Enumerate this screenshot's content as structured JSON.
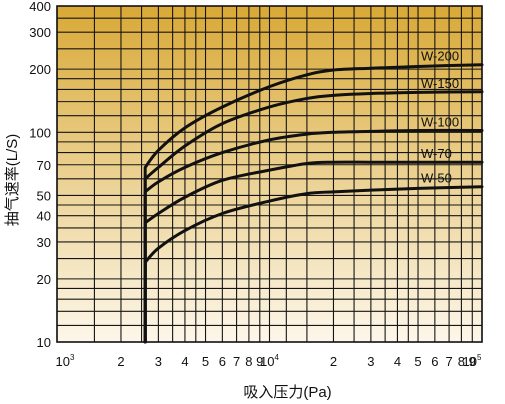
{
  "chart_data": {
    "type": "line",
    "xlabel": "吸入压力(Pa)",
    "ylabel": "抽气速率(L/S)",
    "x_scale": "log",
    "y_scale": "log",
    "xlim": [
      1000,
      100000
    ],
    "ylim": [
      10,
      400
    ],
    "grid": true,
    "background": {
      "top": "#d9a936",
      "bottom": "#fdf7ea"
    },
    "line_color": "#111111",
    "y_ticks": [
      {
        "value": 10,
        "label": "10"
      },
      {
        "value": 20,
        "label": "20"
      },
      {
        "value": 30,
        "label": "30"
      },
      {
        "value": 40,
        "label": "40"
      },
      {
        "value": 50,
        "label": "50"
      },
      {
        "value": 70,
        "label": "70"
      },
      {
        "value": 100,
        "label": "100"
      },
      {
        "value": 200,
        "label": "200"
      },
      {
        "value": 300,
        "label": "300"
      },
      {
        "value": 400,
        "label": "400"
      }
    ],
    "x_ticks": [
      {
        "value": 1000,
        "label": "10",
        "sup": "3"
      },
      {
        "value": 2000,
        "label": "2",
        "sup": ""
      },
      {
        "value": 3000,
        "label": "3",
        "sup": ""
      },
      {
        "value": 4000,
        "label": "4",
        "sup": ""
      },
      {
        "value": 5000,
        "label": "5",
        "sup": ""
      },
      {
        "value": 6000,
        "label": "6",
        "sup": ""
      },
      {
        "value": 7000,
        "label": "7",
        "sup": ""
      },
      {
        "value": 8000,
        "label": "8",
        "sup": ""
      },
      {
        "value": 9000,
        "label": "9",
        "sup": ""
      },
      {
        "value": 10000,
        "label": "10",
        "sup": "4"
      },
      {
        "value": 20000,
        "label": "2",
        "sup": ""
      },
      {
        "value": 30000,
        "label": "3",
        "sup": ""
      },
      {
        "value": 40000,
        "label": "4",
        "sup": ""
      },
      {
        "value": 50000,
        "label": "5",
        "sup": ""
      },
      {
        "value": 60000,
        "label": "6",
        "sup": ""
      },
      {
        "value": 70000,
        "label": "7",
        "sup": ""
      },
      {
        "value": 80000,
        "label": "8",
        "sup": ""
      },
      {
        "value": 90000,
        "label": "9",
        "sup": ""
      },
      {
        "value": 100000,
        "label": "10",
        "sup": "5"
      }
    ],
    "y_grid": [
      10,
      12,
      14,
      16,
      18,
      20,
      25,
      30,
      35,
      40,
      45,
      50,
      60,
      70,
      80,
      90,
      100,
      120,
      140,
      160,
      180,
      200,
      250,
      300,
      350,
      400
    ],
    "x_grid": [
      1000,
      1500,
      2000,
      2500,
      3000,
      3500,
      4000,
      4500,
      5000,
      6000,
      7000,
      8000,
      9000,
      10000,
      12000,
      15000,
      20000,
      25000,
      30000,
      35000,
      40000,
      45000,
      50000,
      60000,
      70000,
      80000,
      90000,
      100000
    ],
    "series": [
      {
        "name": "W-200",
        "points": [
          [
            2600,
            10
          ],
          [
            2600,
            68
          ],
          [
            3000,
            82
          ],
          [
            4000,
            105
          ],
          [
            6000,
            132
          ],
          [
            10000,
            165
          ],
          [
            15000,
            188
          ],
          [
            20000,
            198
          ],
          [
            30000,
            202
          ],
          [
            50000,
            206
          ],
          [
            100000,
            210
          ]
        ]
      },
      {
        "name": "W-150",
        "points": [
          [
            2600,
            10
          ],
          [
            2600,
            60
          ],
          [
            3000,
            68
          ],
          [
            4000,
            86
          ],
          [
            6000,
            110
          ],
          [
            10000,
            132
          ],
          [
            15000,
            145
          ],
          [
            20000,
            150
          ],
          [
            30000,
            153
          ],
          [
            50000,
            155
          ],
          [
            100000,
            156
          ]
        ]
      },
      {
        "name": "W-100",
        "points": [
          [
            2600,
            10
          ],
          [
            2600,
            52
          ],
          [
            3000,
            58
          ],
          [
            4000,
            68
          ],
          [
            6000,
            80
          ],
          [
            10000,
            92
          ],
          [
            15000,
            98
          ],
          [
            20000,
            100
          ],
          [
            30000,
            101
          ],
          [
            50000,
            102
          ],
          [
            100000,
            102
          ]
        ]
      },
      {
        "name": "W-70",
        "points": [
          [
            2600,
            10
          ],
          [
            2600,
            37
          ],
          [
            3000,
            41
          ],
          [
            4000,
            49
          ],
          [
            6000,
            59
          ],
          [
            10000,
            66
          ],
          [
            15000,
            71
          ],
          [
            20000,
            72
          ],
          [
            30000,
            72
          ],
          [
            50000,
            72
          ],
          [
            100000,
            72
          ]
        ]
      },
      {
        "name": "W-50",
        "points": [
          [
            2600,
            10
          ],
          [
            2600,
            24
          ],
          [
            3000,
            28
          ],
          [
            4000,
            34
          ],
          [
            6000,
            41
          ],
          [
            10000,
            47
          ],
          [
            15000,
            51
          ],
          [
            20000,
            52
          ],
          [
            30000,
            53
          ],
          [
            50000,
            54
          ],
          [
            100000,
            55
          ]
        ]
      }
    ]
  }
}
